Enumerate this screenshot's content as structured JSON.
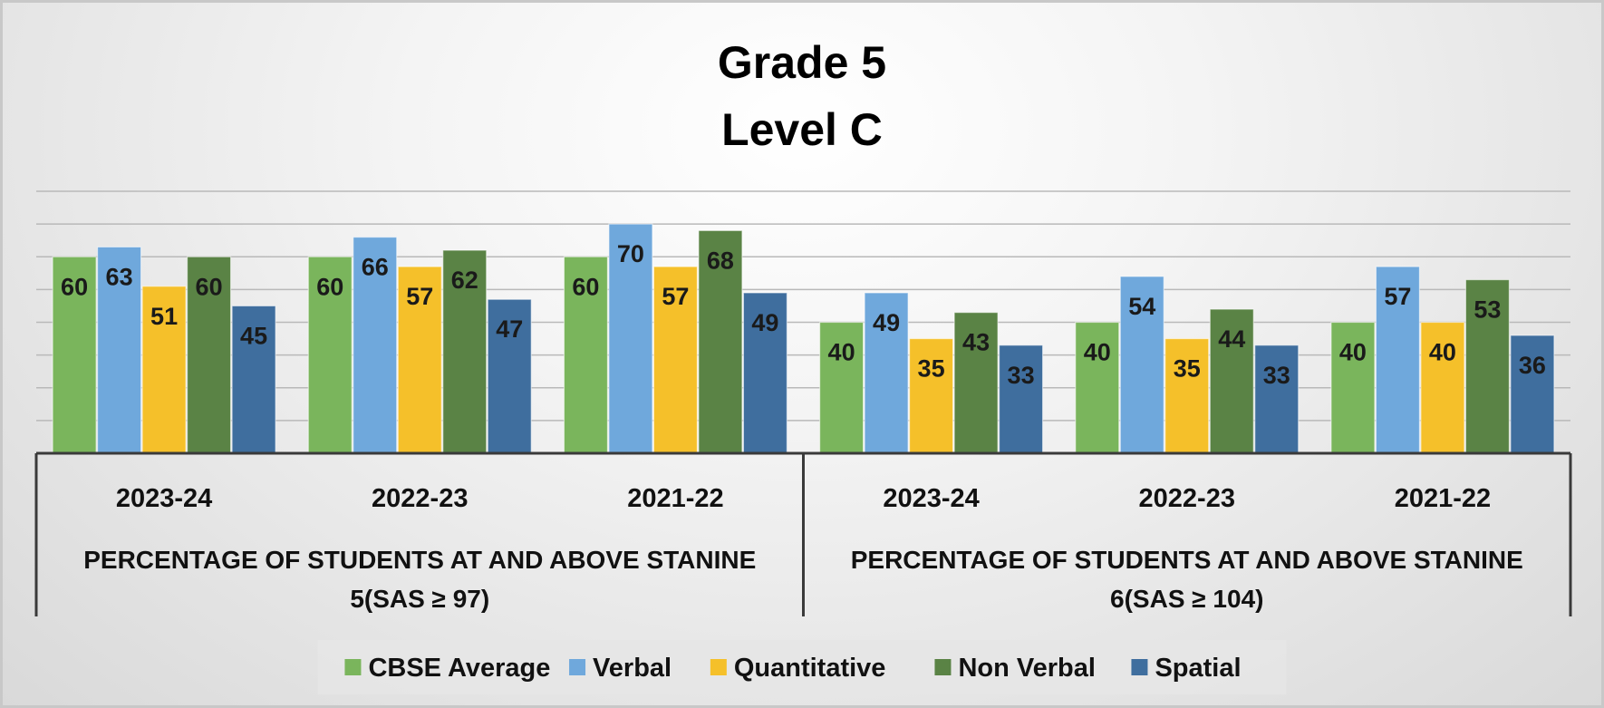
{
  "chart_data": {
    "type": "bar",
    "title": [
      "Grade 5",
      "Level C"
    ],
    "ylim": [
      0,
      80
    ],
    "grid": true,
    "legend_position": "bottom",
    "group_labels": [
      [
        "PERCENTAGE OF STUDENTS AT AND  ABOVE STANINE",
        "5(SAS ≥ 97)"
      ],
      [
        "PERCENTAGE OF STUDENTS AT AND  ABOVE STANINE",
        "6(SAS ≥ 104)"
      ]
    ],
    "categories": [
      "2023-24",
      "2022-23",
      "2021-22",
      "2023-24",
      "2022-23",
      "2021-22"
    ],
    "series": [
      {
        "name": "CBSE Average",
        "color": "#7ab55c",
        "values": [
          60,
          60,
          60,
          40,
          40,
          40
        ]
      },
      {
        "name": "Verbal",
        "color": "#6fa8dc",
        "values": [
          63,
          66,
          70,
          49,
          54,
          57
        ]
      },
      {
        "name": "Quantitative",
        "color": "#f5c02a",
        "values": [
          51,
          57,
          57,
          35,
          35,
          40
        ]
      },
      {
        "name": "Non Verbal",
        "color": "#5a8345",
        "values": [
          60,
          62,
          68,
          43,
          44,
          53
        ]
      },
      {
        "name": "Spatial",
        "color": "#3f6e9e",
        "values": [
          45,
          47,
          49,
          33,
          33,
          36
        ]
      }
    ]
  }
}
